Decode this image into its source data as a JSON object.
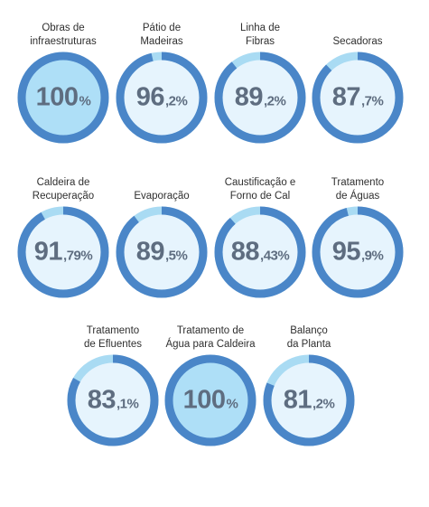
{
  "colors": {
    "ring": "#4a86c8",
    "remainder": "#a9dbf3",
    "inner_fill": "#e6f4fd",
    "inner_fill_full": "#aedff7",
    "value_text": "#5e6d80",
    "label_text": "#2f2f2f"
  },
  "gauges": [
    {
      "label": "Obras de\ninfraestruturas",
      "whole": "100",
      "fraction": "%",
      "percent": 100
    },
    {
      "label": "Pátio de\nMadeiras",
      "whole": "96",
      "fraction": ",2%",
      "percent": 96.2
    },
    {
      "label": "Linha de\nFibras",
      "whole": "89",
      "fraction": ",2%",
      "percent": 89.2
    },
    {
      "label": "Secadoras",
      "whole": "87",
      "fraction": ",7%",
      "percent": 87.7
    },
    {
      "label": "Caldeira de\nRecuperação",
      "whole": "91",
      "fraction": ",79%",
      "percent": 91.79
    },
    {
      "label": "Evaporação",
      "whole": "89",
      "fraction": ",5%",
      "percent": 89.5
    },
    {
      "label": "Caustificação e\nForno de Cal",
      "whole": "88",
      "fraction": ",43%",
      "percent": 88.43
    },
    {
      "label": "Tratamento\nde Águas",
      "whole": "95",
      "fraction": ",9%",
      "percent": 95.9
    },
    {
      "label": "Tratamento\nde Efluentes",
      "whole": "83",
      "fraction": ",1%",
      "percent": 83.1
    },
    {
      "label": "Tratamento de\nÁgua para Caldeira",
      "whole": "100",
      "fraction": "%",
      "percent": 100
    },
    {
      "label": "Balanço\nda Planta",
      "whole": "81",
      "fraction": ",2%",
      "percent": 81.2
    }
  ]
}
